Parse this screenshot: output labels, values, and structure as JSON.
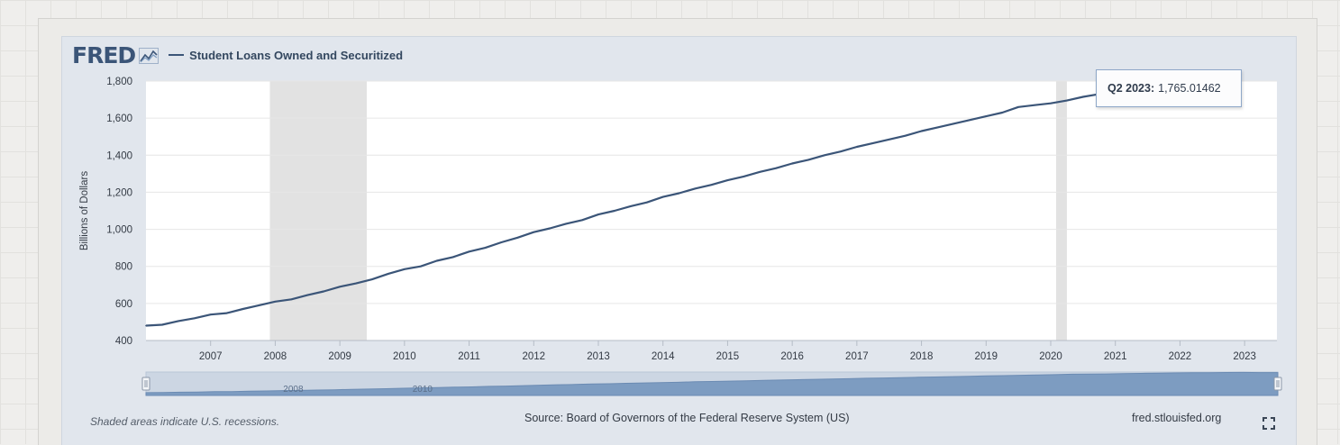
{
  "header": {
    "logo": "FRED",
    "series_title": "Student Loans Owned and Securitized"
  },
  "tooltip": {
    "label": "Q2 2023:",
    "value": "1,765.01462"
  },
  "footer": {
    "note": "Shaded areas indicate U.S. recessions.",
    "source": "Source: Board of Governors of the Federal Reserve System (US)",
    "url": "fred.stlouisfed.org"
  },
  "navigator": {
    "labels": [
      "2008",
      "2010"
    ]
  },
  "colors": {
    "line": "#3b5578",
    "recession": "#e2e2e2",
    "navigator_fill": "#7d9cc1"
  },
  "chart_data": {
    "type": "line",
    "title": "Student Loans Owned and Securitized",
    "ylabel": "Billions of Dollars",
    "xlabel": "",
    "frequency": "quarterly",
    "ylim": [
      400,
      1800
    ],
    "yticks": [
      400,
      600,
      800,
      1000,
      1200,
      1400,
      1600,
      1800
    ],
    "xticks": [
      "2007",
      "2008",
      "2009",
      "2010",
      "2011",
      "2012",
      "2013",
      "2014",
      "2015",
      "2016",
      "2017",
      "2018",
      "2019",
      "2020",
      "2021",
      "2022",
      "2023"
    ],
    "recessions": [
      [
        "2007-12-01",
        "2009-06-01"
      ],
      [
        "2020-02-01",
        "2020-04-01"
      ]
    ],
    "series": [
      {
        "name": "Student Loans Owned and Securitized",
        "start": "2006-01-01",
        "values": [
          480,
          485,
          505,
          520,
          540,
          548,
          570,
          590,
          610,
          622,
          645,
          665,
          690,
          708,
          730,
          760,
          785,
          800,
          830,
          850,
          880,
          900,
          930,
          955,
          985,
          1005,
          1030,
          1050,
          1080,
          1100,
          1125,
          1145,
          1175,
          1195,
          1220,
          1240,
          1265,
          1285,
          1310,
          1330,
          1355,
          1375,
          1400,
          1420,
          1445,
          1465,
          1485,
          1505,
          1530,
          1550,
          1570,
          1590,
          1610,
          1630,
          1660,
          1670,
          1680,
          1695,
          1715,
          1730,
          1745,
          1755,
          1762,
          1770,
          1775,
          1768,
          1765.01462
        ]
      }
    ]
  }
}
